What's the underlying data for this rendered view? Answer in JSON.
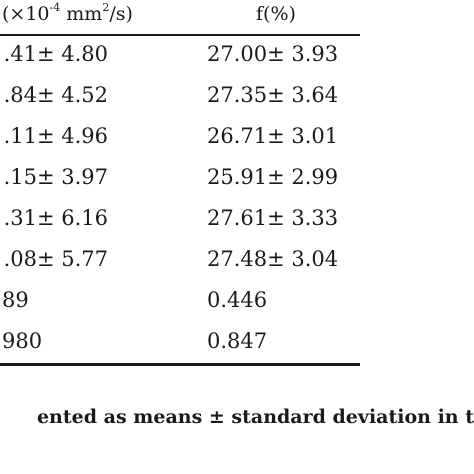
{
  "table": {
    "headers": {
      "col1_prefix": "(×10",
      "col1_exp": "-4",
      "col1_unit": " mm",
      "col1_unit_exp": "2",
      "col1_suffix": "/s)",
      "col2": "f(%)"
    },
    "rows": [
      {
        "c1": ".41± 4.80",
        "c2": "27.00± 3.93"
      },
      {
        "c1": ".84± 4.52",
        "c2": "27.35± 3.64"
      },
      {
        "c1": ".11± 4.96",
        "c2": "26.71± 3.01"
      },
      {
        "c1": ".15± 3.97",
        "c2": "25.91± 2.99"
      },
      {
        "c1": ".31± 6.16",
        "c2": "27.61± 3.33"
      },
      {
        "c1": ".08± 5.77",
        "c2": "27.48± 3.04"
      },
      {
        "c1": "89",
        "c2": "0.446"
      },
      {
        "c1": "980",
        "c2": "0.847"
      }
    ]
  },
  "caption": "ented as means ± standard deviation in t"
}
